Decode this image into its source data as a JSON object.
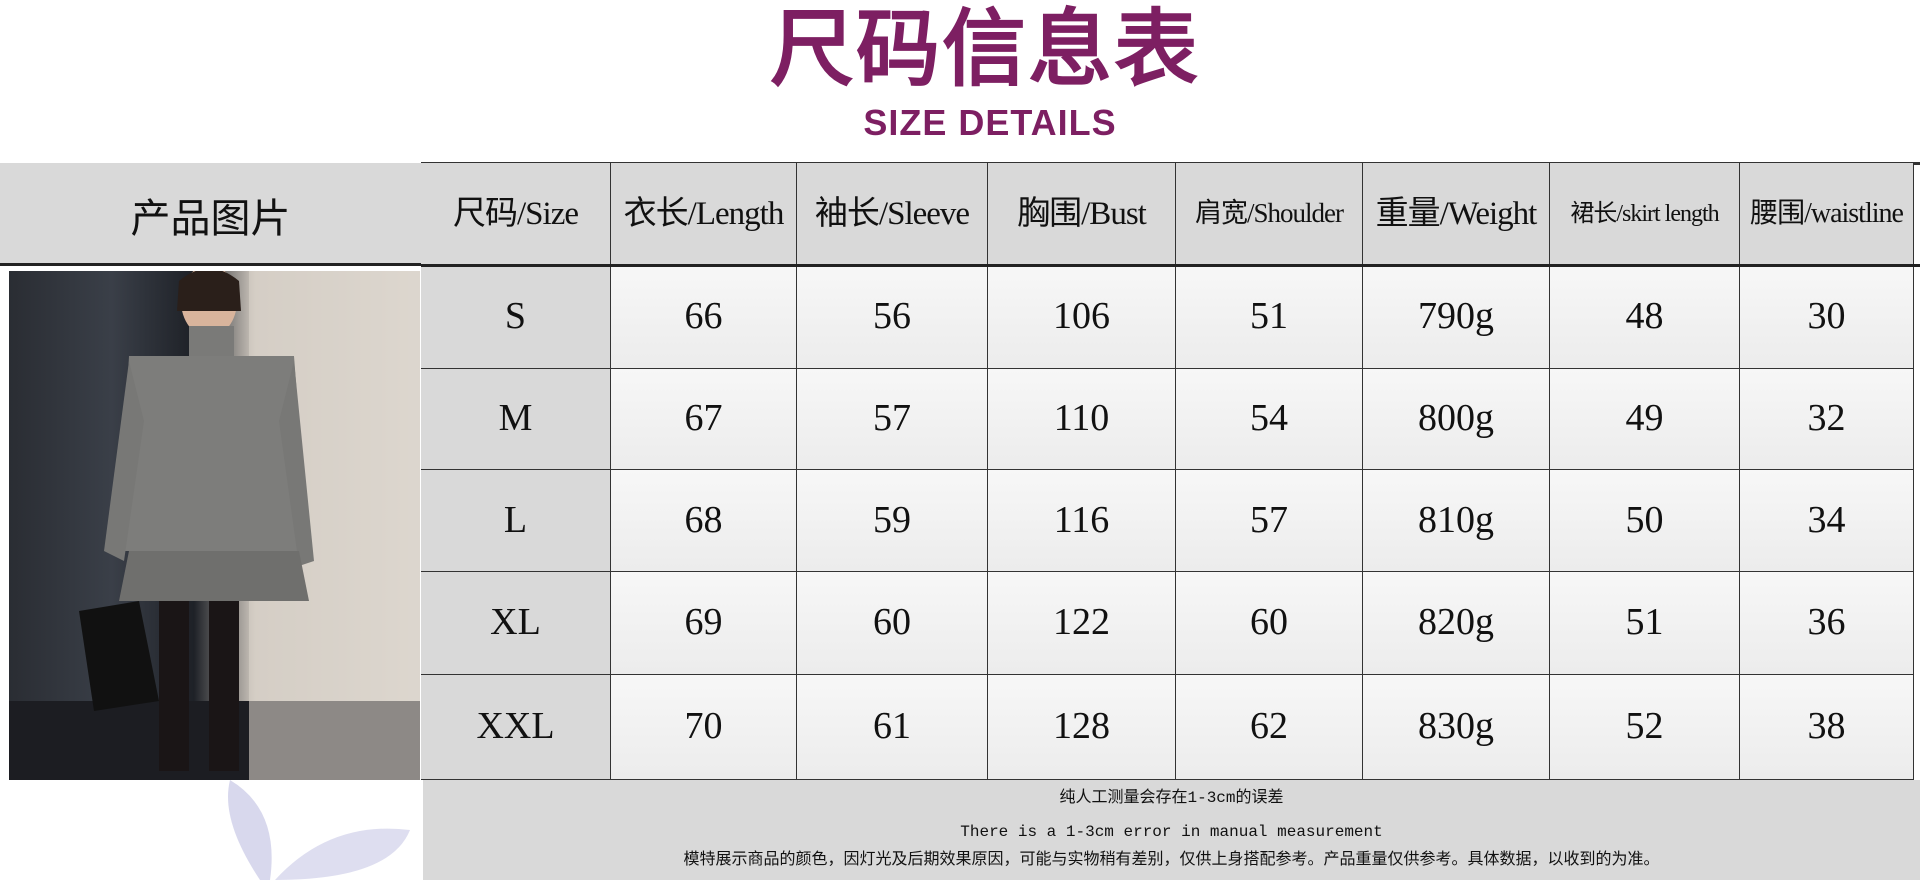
{
  "title": "尺码信息表",
  "subtitle": "SIZE DETAILS",
  "photo_label": "产品图片",
  "headers": [
    "尺码/Size",
    "衣长/Length",
    "袖长/Sleeve",
    "胸围/Bust",
    "肩宽/Shoulder",
    "重量/Weight",
    "裙长/skirt length",
    "腰围/waistline"
  ],
  "rows": [
    [
      "S",
      "66",
      "56",
      "106",
      "51",
      "790g",
      "48",
      "30"
    ],
    [
      "M",
      "67",
      "57",
      "110",
      "54",
      "800g",
      "49",
      "32"
    ],
    [
      "L",
      "68",
      "59",
      "116",
      "57",
      "810g",
      "50",
      "34"
    ],
    [
      "XL",
      "69",
      "60",
      "122",
      "60",
      "820g",
      "51",
      "36"
    ],
    [
      "XXL",
      "70",
      "61",
      "128",
      "62",
      "830g",
      "52",
      "38"
    ]
  ],
  "footer": {
    "line1": "纯人工测量会存在1-3cm的误差",
    "line2": "There is a 1-3cm error in manual measurement",
    "line3": "模特展示商品的颜色，因灯光及后期效果原因，可能与实物稍有差别，仅供上身搭配参考。产品重量仅供参考。具体数据，以收到的为准。"
  },
  "colors": {
    "title": "#7d1f62",
    "header_bg": "#d9d9d9",
    "cell_bg": "#f0f0f0"
  }
}
